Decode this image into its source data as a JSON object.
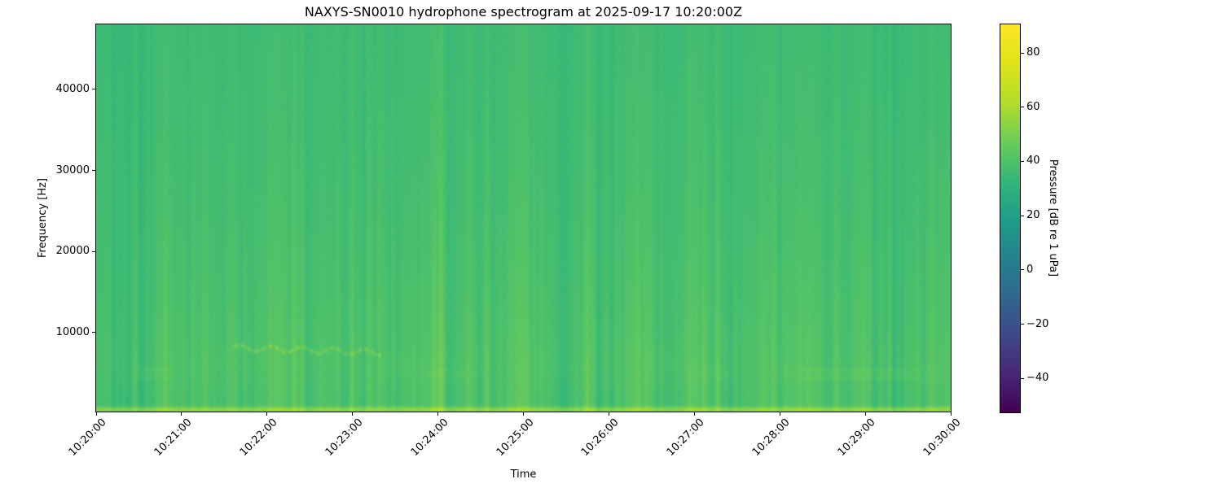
{
  "chart_data": {
    "type": "heatmap",
    "subtype": "spectrogram",
    "title": "NAXYS-SN0010 hydrophone spectrogram at 2025-09-17 10:20:00Z",
    "xlabel": "Time",
    "ylabel": "Frequency [Hz]",
    "x_tick_labels": [
      "10:20:00",
      "10:21:00",
      "10:22:00",
      "10:23:00",
      "10:24:00",
      "10:25:00",
      "10:26:00",
      "10:27:00",
      "10:28:00",
      "10:29:00",
      "10:30:00"
    ],
    "x_range_seconds": [
      0,
      600
    ],
    "x_tick_interval_s": 60,
    "ylim_hz": [
      270,
      48000
    ],
    "y_ticks": [
      {
        "value": 10000,
        "label": "10000"
      },
      {
        "value": 20000,
        "label": "20000"
      },
      {
        "value": 30000,
        "label": "30000"
      },
      {
        "value": 40000,
        "label": "40000"
      }
    ],
    "grid": false,
    "colorbar": {
      "label": "Pressure [dB re 1 uPa]",
      "colormap": "viridis",
      "clim": [
        -52.5,
        90.5
      ],
      "ticks": [
        {
          "value": 80,
          "label": "80"
        },
        {
          "value": 60,
          "label": "60"
        },
        {
          "value": 40,
          "label": "40"
        },
        {
          "value": 20,
          "label": "20"
        },
        {
          "value": 0,
          "label": "0"
        },
        {
          "value": -20,
          "label": "−20"
        },
        {
          "value": -40,
          "label": "−40"
        }
      ]
    },
    "background_profile_hz_db": [
      [
        48000,
        36.0
      ],
      [
        35000,
        36.8
      ],
      [
        25000,
        37.6
      ],
      [
        15000,
        38.8
      ],
      [
        10000,
        39.5
      ],
      [
        6000,
        40.2
      ],
      [
        3000,
        39.8
      ],
      [
        1500,
        39.5
      ],
      [
        950,
        40.5
      ],
      [
        800,
        46.0
      ],
      [
        600,
        52.5
      ],
      [
        430,
        54.0
      ],
      [
        270,
        51.0
      ]
    ],
    "features": [
      {
        "type": "tonal",
        "description": "wavy whistle-like tonal",
        "t0": 95,
        "t1": 200,
        "f_hz": 8100,
        "wave_hz": 350,
        "wavelength_s": 22,
        "drift_hz": -600,
        "width_hz": 260,
        "boost_db": 9
      },
      {
        "type": "patch",
        "description": "broadband smear",
        "t0": 20,
        "t1": 60,
        "f0": 4100,
        "f1": 5600,
        "boost_db": 1.8
      },
      {
        "type": "patch",
        "description": "broadband smear",
        "t0": 225,
        "t1": 268,
        "f0": 4200,
        "f1": 5500,
        "boost_db": 1.8
      },
      {
        "type": "patch",
        "description": "broadband smear",
        "t0": 412,
        "t1": 452,
        "f0": 4100,
        "f1": 5400,
        "boost_db": 1.6
      },
      {
        "type": "patch",
        "description": "broadband smear",
        "t0": 470,
        "t1": 600,
        "f0": 3900,
        "f1": 5600,
        "boost_db": 2.2
      }
    ],
    "texture": {
      "seed": 1337,
      "column_jitter_db": 1.2,
      "strong_columns": 70,
      "strong_amp_db": 2.3,
      "broad_columns": 10,
      "broad_amp_db": 0.8,
      "pixel_noise_db": 0.85
    }
  }
}
